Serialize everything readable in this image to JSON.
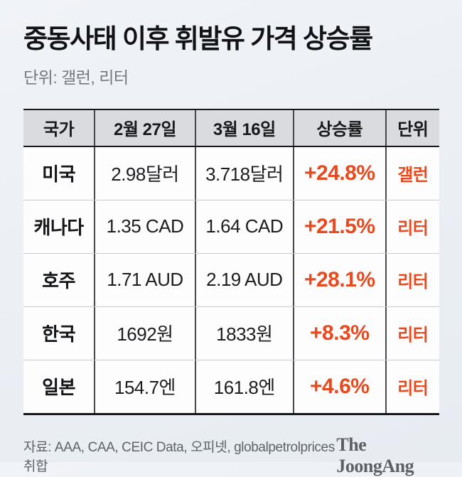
{
  "page": {
    "title": "중동사태 이후 휘발유 가격 상승률",
    "subtitle": "단위: 갤런, 리터",
    "source": "자료: AAA, CAA, CEIC Data, 오피넷, globalpetrolprices 취합",
    "logo": "The JoongAng"
  },
  "colors": {
    "accent_orange": "#e8491d",
    "header_bg": "#d9dbde",
    "table_border_dark": "#17181b",
    "page_bg": "#ebeff4",
    "subtitle_gray": "#74797f"
  },
  "chart_data": {
    "type": "table",
    "title": "중동사태 이후 휘발유 가격 상승률",
    "unit_note": "단위: 갤런, 리터",
    "columns": [
      "국가",
      "2월 27일",
      "3월 16일",
      "상승률",
      "단위"
    ],
    "rows": [
      {
        "country": "미국",
        "feb27": "2.98달러",
        "mar16": "3.718달러",
        "change": "+24.8%",
        "unit": "갤런"
      },
      {
        "country": "캐나다",
        "feb27": "1.35 CAD",
        "mar16": "1.64 CAD",
        "change": "+21.5%",
        "unit": "리터"
      },
      {
        "country": "호주",
        "feb27": "1.71 AUD",
        "mar16": "2.19 AUD",
        "change": "+28.1%",
        "unit": "리터"
      },
      {
        "country": "한국",
        "feb27": "1692원",
        "mar16": "1833원",
        "change": "+8.3%",
        "unit": "리터"
      },
      {
        "country": "일본",
        "feb27": "154.7엔",
        "mar16": "161.8엔",
        "change": "+4.6%",
        "unit": "리터"
      }
    ],
    "change_values_pct": [
      24.8,
      21.5,
      28.1,
      8.3,
      4.6
    ],
    "layout_hints": {
      "change_and_unit_color": "#e8491d",
      "all_cells_centered": true
    }
  }
}
